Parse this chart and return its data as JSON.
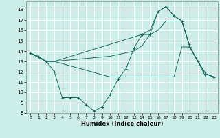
{
  "xlabel": "Humidex (Indice chaleur)",
  "background_color": "#cceee8",
  "grid_color": "#ffffff",
  "line_color": "#1a6b5e",
  "xlim": [
    -0.5,
    23.5
  ],
  "ylim": [
    8,
    18.8
  ],
  "yticks": [
    8,
    9,
    10,
    11,
    12,
    13,
    14,
    15,
    16,
    17,
    18
  ],
  "xticks": [
    0,
    1,
    2,
    3,
    4,
    5,
    6,
    7,
    8,
    9,
    10,
    11,
    12,
    13,
    14,
    15,
    16,
    17,
    18,
    19,
    20,
    21,
    22,
    23
  ],
  "series": [
    {
      "x": [
        0,
        1,
        2,
        3,
        4,
        5,
        6,
        7,
        8,
        9,
        10,
        11,
        12,
        13,
        14,
        15,
        16,
        17,
        18,
        19,
        20,
        21,
        22,
        23
      ],
      "y": [
        13.8,
        13.5,
        13.0,
        12.0,
        9.5,
        9.5,
        9.5,
        8.8,
        8.2,
        8.6,
        9.8,
        11.3,
        12.3,
        14.3,
        15.6,
        15.6,
        17.8,
        18.3,
        17.4,
        16.9,
        14.4,
        13.0,
        11.8,
        11.5
      ],
      "marker": true
    },
    {
      "x": [
        0,
        2,
        3,
        14,
        15,
        16,
        17,
        18,
        19,
        20,
        21,
        22,
        23
      ],
      "y": [
        13.8,
        13.0,
        13.0,
        15.6,
        16.0,
        17.8,
        18.3,
        17.4,
        16.9,
        14.4,
        13.0,
        11.8,
        11.5
      ],
      "marker": false
    },
    {
      "x": [
        0,
        2,
        3,
        10,
        13,
        14,
        15,
        16,
        17,
        18,
        19,
        20,
        21,
        22,
        23
      ],
      "y": [
        13.8,
        13.0,
        13.0,
        13.5,
        14.0,
        14.5,
        15.6,
        16.0,
        16.9,
        16.9,
        16.9,
        14.4,
        13.0,
        11.8,
        11.5
      ],
      "marker": false
    },
    {
      "x": [
        0,
        2,
        3,
        10,
        11,
        12,
        13,
        14,
        15,
        16,
        17,
        18,
        19,
        20,
        21,
        22,
        23
      ],
      "y": [
        13.8,
        13.0,
        13.0,
        11.5,
        11.5,
        11.5,
        11.5,
        11.5,
        11.5,
        11.5,
        11.5,
        11.5,
        14.4,
        14.4,
        13.0,
        11.5,
        11.5
      ],
      "marker": false
    }
  ]
}
